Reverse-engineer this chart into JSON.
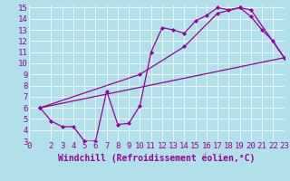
{
  "xlabel": "Windchill (Refroidissement éolien,°C)",
  "bg_color": "#b2e0e8",
  "line_color": "#990099",
  "xlim": [
    0,
    23
  ],
  "ylim": [
    3,
    15.2
  ],
  "xticks": [
    0,
    2,
    3,
    4,
    5,
    6,
    7,
    8,
    9,
    10,
    11,
    12,
    13,
    14,
    15,
    16,
    17,
    18,
    19,
    20,
    21,
    22,
    23
  ],
  "yticks": [
    3,
    4,
    5,
    6,
    7,
    8,
    9,
    10,
    11,
    12,
    13,
    14,
    15
  ],
  "line1_x": [
    1,
    2,
    3,
    4,
    5,
    5,
    6,
    7,
    8,
    9,
    10,
    11,
    12,
    13,
    14,
    15,
    16,
    17,
    18,
    19,
    20,
    21,
    22,
    23
  ],
  "line1_y": [
    6.0,
    4.8,
    4.3,
    4.3,
    3.0,
    3.0,
    3.0,
    7.5,
    4.5,
    4.6,
    6.2,
    11.0,
    13.2,
    13.0,
    12.7,
    13.8,
    14.3,
    15.0,
    14.8,
    15.0,
    14.2,
    13.0,
    12.0,
    10.5
  ],
  "line2_x": [
    1,
    23
  ],
  "line2_y": [
    6.0,
    10.5
  ],
  "line3_x": [
    1,
    10,
    14,
    17,
    19,
    20,
    23
  ],
  "line3_y": [
    6.0,
    9.0,
    11.5,
    14.5,
    15.0,
    14.8,
    10.5
  ],
  "grid_color": "#ffffff",
  "font_color": "#990099",
  "font_family": "monospace",
  "font_size": 6.5,
  "xlabel_fontsize": 7,
  "marker": "D",
  "marker_size": 2.5,
  "linewidth": 0.9
}
